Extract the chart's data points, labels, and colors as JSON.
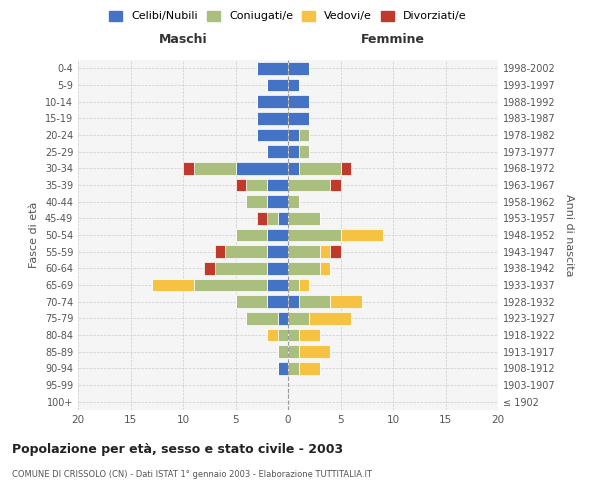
{
  "age_groups": [
    "100+",
    "95-99",
    "90-94",
    "85-89",
    "80-84",
    "75-79",
    "70-74",
    "65-69",
    "60-64",
    "55-59",
    "50-54",
    "45-49",
    "40-44",
    "35-39",
    "30-34",
    "25-29",
    "20-24",
    "15-19",
    "10-14",
    "5-9",
    "0-4"
  ],
  "birth_years": [
    "≤ 1902",
    "1903-1907",
    "1908-1912",
    "1913-1917",
    "1918-1922",
    "1923-1927",
    "1928-1932",
    "1933-1937",
    "1938-1942",
    "1943-1947",
    "1948-1952",
    "1953-1957",
    "1958-1962",
    "1963-1967",
    "1968-1972",
    "1973-1977",
    "1978-1982",
    "1983-1987",
    "1988-1992",
    "1993-1997",
    "1998-2002"
  ],
  "maschi": {
    "celibi": [
      0,
      0,
      1,
      0,
      0,
      1,
      2,
      2,
      2,
      2,
      2,
      1,
      2,
      2,
      5,
      2,
      3,
      3,
      3,
      2,
      3
    ],
    "coniugati": [
      0,
      0,
      0,
      1,
      1,
      3,
      3,
      7,
      5,
      4,
      3,
      1,
      2,
      2,
      4,
      0,
      0,
      0,
      0,
      0,
      0
    ],
    "vedovi": [
      0,
      0,
      0,
      0,
      1,
      0,
      0,
      4,
      0,
      0,
      0,
      0,
      0,
      0,
      0,
      0,
      0,
      0,
      0,
      0,
      0
    ],
    "divorziati": [
      0,
      0,
      0,
      0,
      0,
      0,
      0,
      0,
      1,
      1,
      0,
      1,
      0,
      1,
      1,
      0,
      0,
      0,
      0,
      0,
      0
    ]
  },
  "femmine": {
    "nubili": [
      0,
      0,
      0,
      0,
      0,
      0,
      1,
      0,
      0,
      0,
      0,
      0,
      0,
      0,
      1,
      1,
      1,
      2,
      2,
      1,
      2
    ],
    "coniugate": [
      0,
      0,
      1,
      1,
      1,
      2,
      3,
      1,
      3,
      3,
      5,
      3,
      1,
      4,
      4,
      1,
      1,
      0,
      0,
      0,
      0
    ],
    "vedove": [
      0,
      0,
      2,
      3,
      2,
      4,
      3,
      1,
      1,
      1,
      4,
      0,
      0,
      0,
      0,
      0,
      0,
      0,
      0,
      0,
      0
    ],
    "divorziate": [
      0,
      0,
      0,
      0,
      0,
      0,
      0,
      0,
      0,
      1,
      0,
      0,
      0,
      1,
      1,
      0,
      0,
      0,
      0,
      0,
      0
    ]
  },
  "colors": {
    "celibi_nubili": "#4472C4",
    "coniugati": "#AABF7E",
    "vedovi": "#F5C242",
    "divorziati": "#C0392B"
  },
  "xlim": 20,
  "title": "Popolazione per età, sesso e stato civile - 2003",
  "subtitle": "COMUNE DI CRISSOLO (CN) - Dati ISTAT 1° gennaio 2003 - Elaborazione TUTTITALIA.IT",
  "ylabel_left": "Fasce di età",
  "ylabel_right": "Anni di nascita",
  "xlabel_maschi": "Maschi",
  "xlabel_femmine": "Femmine",
  "background_color": "#ffffff",
  "plot_bg": "#f5f5f5",
  "grid_color": "#cccccc"
}
